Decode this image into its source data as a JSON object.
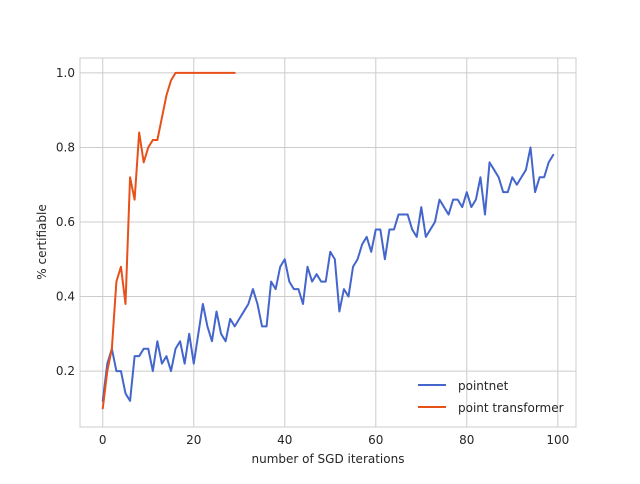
{
  "chart_data": {
    "type": "line",
    "title": "",
    "xlabel": "number of SGD iterations",
    "ylabel": "% certifiable",
    "xlim": [
      -5,
      104
    ],
    "ylim": [
      0.05,
      1.04
    ],
    "xticks": [
      0,
      20,
      40,
      60,
      80,
      100
    ],
    "yticks": [
      0.2,
      0.4,
      0.6,
      0.8,
      1.0
    ],
    "xtick_labels": [
      "0",
      "20",
      "40",
      "60",
      "80",
      "100"
    ],
    "ytick_labels": [
      "0.2",
      "0.4",
      "0.6",
      "0.8",
      "1.0"
    ],
    "grid": true,
    "legend_position": "lower-right",
    "series": [
      {
        "name": "pointnet",
        "color": "#4466cc",
        "x": [
          0,
          1,
          2,
          3,
          4,
          5,
          6,
          7,
          8,
          9,
          10,
          11,
          12,
          13,
          14,
          15,
          16,
          17,
          18,
          19,
          20,
          21,
          22,
          23,
          24,
          25,
          26,
          27,
          28,
          29,
          30,
          31,
          32,
          33,
          34,
          35,
          36,
          37,
          38,
          39,
          40,
          41,
          42,
          43,
          44,
          45,
          46,
          47,
          48,
          49,
          50,
          51,
          52,
          53,
          54,
          55,
          56,
          57,
          58,
          59,
          60,
          61,
          62,
          63,
          64,
          65,
          66,
          67,
          68,
          69,
          70,
          71,
          72,
          73,
          74,
          75,
          76,
          77,
          78,
          79,
          80,
          81,
          82,
          83,
          84,
          85,
          86,
          87,
          88,
          89,
          90,
          91,
          92,
          93,
          94,
          95,
          96,
          97,
          98,
          99
        ],
        "values": [
          0.12,
          0.22,
          0.26,
          0.2,
          0.2,
          0.14,
          0.12,
          0.24,
          0.24,
          0.26,
          0.26,
          0.2,
          0.28,
          0.22,
          0.24,
          0.2,
          0.26,
          0.28,
          0.22,
          0.3,
          0.22,
          0.3,
          0.38,
          0.32,
          0.28,
          0.36,
          0.3,
          0.28,
          0.34,
          0.32,
          0.34,
          0.36,
          0.38,
          0.42,
          0.38,
          0.32,
          0.32,
          0.44,
          0.42,
          0.48,
          0.5,
          0.44,
          0.42,
          0.42,
          0.38,
          0.48,
          0.44,
          0.46,
          0.44,
          0.44,
          0.52,
          0.5,
          0.36,
          0.42,
          0.4,
          0.48,
          0.5,
          0.54,
          0.56,
          0.52,
          0.58,
          0.58,
          0.5,
          0.58,
          0.58,
          0.62,
          0.62,
          0.62,
          0.58,
          0.56,
          0.64,
          0.56,
          0.58,
          0.6,
          0.66,
          0.64,
          0.62,
          0.66,
          0.66,
          0.64,
          0.68,
          0.64,
          0.66,
          0.72,
          0.62,
          0.76,
          0.74,
          0.72,
          0.68,
          0.68,
          0.72,
          0.7,
          0.72,
          0.74,
          0.8,
          0.68,
          0.72,
          0.72,
          0.76,
          0.78
        ]
      },
      {
        "name": "point transformer",
        "color": "#e8501a",
        "x": [
          0,
          1,
          2,
          3,
          4,
          5,
          6,
          7,
          8,
          9,
          10,
          11,
          12,
          13,
          14,
          15,
          16,
          17,
          18,
          19,
          20,
          21,
          22,
          23,
          24,
          25,
          26,
          27,
          28,
          29
        ],
        "values": [
          0.1,
          0.2,
          0.26,
          0.44,
          0.48,
          0.38,
          0.72,
          0.66,
          0.84,
          0.76,
          0.8,
          0.82,
          0.82,
          0.88,
          0.94,
          0.98,
          1.0,
          1.0,
          1.0,
          1.0,
          1.0,
          1.0,
          1.0,
          1.0,
          1.0,
          1.0,
          1.0,
          1.0,
          1.0,
          1.0
        ]
      }
    ]
  }
}
